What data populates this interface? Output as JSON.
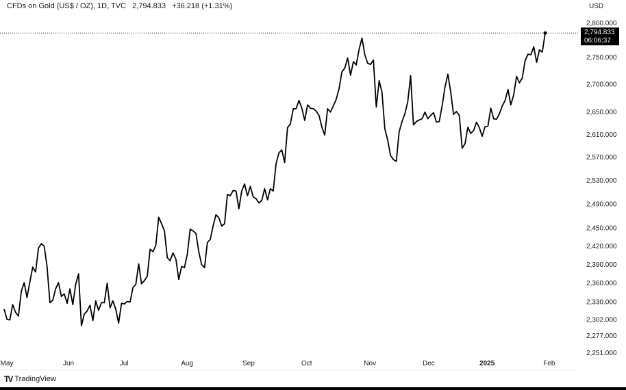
{
  "header": {
    "symbol": "CFDs on Gold (US$ / OZ), 1D, TVC",
    "last": "2,794.833",
    "change": "+36.218 (+1.31%)"
  },
  "currency": "USD",
  "brand": "TradingView",
  "chart_data": {
    "type": "line",
    "title": "CFDs on Gold (US$ / OZ), 1D, TVC",
    "scale": "log",
    "line_color": "#000000",
    "last_price": {
      "value": 2794.833,
      "label": "2,794.833",
      "countdown": "06:06:37"
    },
    "y_ticks": [
      {
        "value": 2800,
        "label": "2,800.000"
      },
      {
        "value": 2750,
        "label": "2,750.000"
      },
      {
        "value": 2700,
        "label": "2,700.000"
      },
      {
        "value": 2650,
        "label": "2,650.000"
      },
      {
        "value": 2610,
        "label": "2,610.000"
      },
      {
        "value": 2570,
        "label": "2,570.000"
      },
      {
        "value": 2530,
        "label": "2,530.000"
      },
      {
        "value": 2490,
        "label": "2,490.000"
      },
      {
        "value": 2450,
        "label": "2,450.000"
      },
      {
        "value": 2420,
        "label": "2,420.000"
      },
      {
        "value": 2390,
        "label": "2,390.000"
      },
      {
        "value": 2360,
        "label": "2,360.000"
      },
      {
        "value": 2330,
        "label": "2,330.000"
      },
      {
        "value": 2302,
        "label": "2,302.000"
      },
      {
        "value": 2277,
        "label": "2,277.000"
      },
      {
        "value": 2251,
        "label": "2,251.000"
      }
    ],
    "x_ticks": [
      {
        "index": 0.5,
        "label": "May",
        "bold": false
      },
      {
        "index": 22.5,
        "label": "Jun",
        "bold": false
      },
      {
        "index": 41.9,
        "label": "Jul",
        "bold": false
      },
      {
        "index": 63.9,
        "label": "Aug",
        "bold": false
      },
      {
        "index": 85.4,
        "label": "Sep",
        "bold": false
      },
      {
        "index": 105.7,
        "label": "Oct",
        "bold": false
      },
      {
        "index": 127.8,
        "label": "Nov",
        "bold": false
      },
      {
        "index": 148.3,
        "label": "Dec",
        "bold": false
      },
      {
        "index": 168.7,
        "label": "2025",
        "bold": true
      },
      {
        "index": 190.4,
        "label": "Feb",
        "bold": false
      }
    ],
    "values": [
      2318,
      2302,
      2301,
      2325,
      2313,
      2307,
      2346,
      2360,
      2336,
      2361,
      2385,
      2377,
      2416,
      2423,
      2419,
      2386,
      2328,
      2332,
      2350,
      2360,
      2338,
      2342,
      2327,
      2350,
      2325,
      2357,
      2374,
      2292,
      2310,
      2315,
      2324,
      2300,
      2331,
      2316,
      2328,
      2328,
      2359,
      2320,
      2331,
      2318,
      2296,
      2327,
      2326,
      2330,
      2329,
      2352,
      2357,
      2390,
      2358,
      2363,
      2370,
      2414,
      2410,
      2420,
      2467,
      2456,
      2444,
      2400,
      2395,
      2408,
      2398,
      2365,
      2386,
      2384,
      2406,
      2447,
      2444,
      2440,
      2410,
      2389,
      2384,
      2425,
      2430,
      2452,
      2471,
      2466,
      2452,
      2456,
      2505,
      2503,
      2512,
      2511,
      2481,
      2511,
      2523,
      2503,
      2519,
      2501,
      2498,
      2491,
      2495,
      2515,
      2496,
      2515,
      2511,
      2558,
      2577,
      2582,
      2560,
      2621,
      2628,
      2655,
      2655,
      2670,
      2656,
      2634,
      2662,
      2656,
      2655,
      2651,
      2643,
      2622,
      2608,
      2655,
      2649,
      2660,
      2672,
      2691,
      2722,
      2729,
      2748,
      2716,
      2741,
      2735,
      2764,
      2785,
      2754,
      2738,
      2736,
      2744,
      2658,
      2706,
      2685,
      2619,
      2599,
      2572,
      2565,
      2562,
      2614,
      2632,
      2646,
      2668,
      2715,
      2626,
      2632,
      2635,
      2637,
      2649,
      2637,
      2643,
      2648,
      2631,
      2632,
      2660,
      2694,
      2718,
      2685,
      2645,
      2650,
      2643,
      2585,
      2593,
      2622,
      2611,
      2616,
      2631,
      2621,
      2606,
      2623,
      2624,
      2656,
      2637,
      2636,
      2646,
      2660,
      2670,
      2690,
      2662,
      2680,
      2714,
      2702,
      2711,
      2743,
      2755,
      2754,
      2769,
      2740,
      2763,
      2759,
      2794.833
    ]
  }
}
